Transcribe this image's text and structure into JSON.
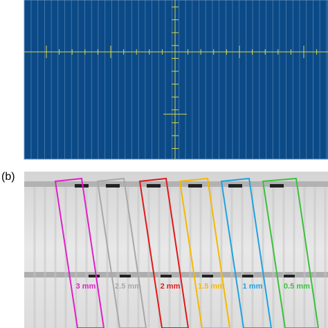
{
  "panel_b": {
    "label": "(b)",
    "strips": [
      {
        "label": "3 mm",
        "color": "#e020c8"
      },
      {
        "label": "2.5 mm",
        "color": "#a8a8a8"
      },
      {
        "label": "2 mm",
        "color": "#e01818"
      },
      {
        "label": "1.5 mm",
        "color": "#f5b800"
      },
      {
        "label": "1 mm",
        "color": "#1fa2e0"
      },
      {
        "label": "0.5 mm",
        "color": "#3cc03c"
      }
    ]
  }
}
